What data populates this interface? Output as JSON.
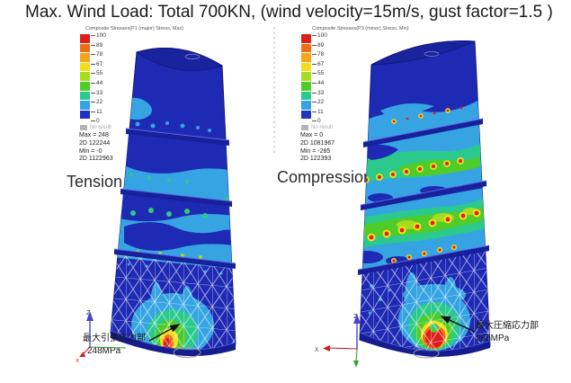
{
  "title": "Max. Wind Load: Total 700KN, (wind velocity=15m/s, gust factor=1.5 )",
  "colorbar": {
    "levels": [
      "100",
      "89",
      "78",
      "67",
      "55",
      "44",
      "33",
      "22",
      "11",
      "0"
    ],
    "colors": [
      "#de1f18",
      "#ee6e16",
      "#f5a51a",
      "#f2df1c",
      "#a8dc1e",
      "#4fcb2a",
      "#2cc98c",
      "#36a4e2",
      "#2133c0"
    ],
    "no_result_label": "No result",
    "no_result_color": "#b4b4b4"
  },
  "left_panel": {
    "label": "Tension",
    "legend": {
      "title": "Composite Stresses(P1 (major) Stress, Max)",
      "stats": [
        "Max = 248",
        "2D 122244",
        "Min = -0",
        "2D 1122963"
      ]
    },
    "annotation": {
      "line1": "最大引張応力部",
      "line2": "248MPa"
    },
    "triad": {
      "z": "Z",
      "x": "X"
    }
  },
  "right_panel": {
    "label": "Compression",
    "legend": {
      "title": "Composite Stresses(P3 (minor) Stress, Min)",
      "stats": [
        "Max = 0",
        "2D 1081967",
        "Min = -285",
        "2D 122393"
      ]
    },
    "annotation": {
      "line1": "最大圧縮応力部",
      "line2": "285MPa"
    },
    "triad": {
      "z": "Z",
      "x": "X"
    }
  },
  "chart_data": [
    {
      "type": "heatmap",
      "title": "Composite Stresses(P1 (major) Stress, Max)",
      "label": "Tension",
      "units": "MPa",
      "legend_levels": [
        100,
        89,
        78,
        67,
        55,
        44,
        33,
        22,
        11,
        0
      ],
      "max_value": "248",
      "max_element": "2D 122244",
      "min_value": "-0",
      "min_element": "2D 1122963",
      "peak_annotation": "最大引張応力部 248MPa",
      "legend_position": "top-left"
    },
    {
      "type": "heatmap",
      "title": "Composite Stresses(P3 (minor) Stress, Min)",
      "label": "Compression",
      "units": "MPa",
      "legend_levels": [
        100,
        89,
        78,
        67,
        55,
        44,
        33,
        22,
        11,
        0
      ],
      "max_value": "0",
      "max_element": "2D 1081967",
      "min_value": "-285",
      "min_element": "2D 122393",
      "peak_annotation": "最大圧縮応力部 285MPa",
      "legend_position": "top-left"
    }
  ]
}
